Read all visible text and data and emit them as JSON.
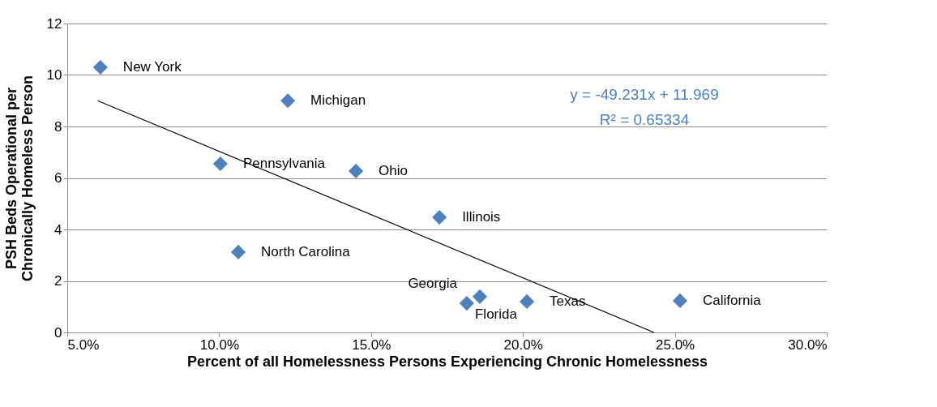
{
  "chart_data": {
    "type": "scatter",
    "xlabel": "Percent of all Homelessness Persons Experiencing Chronic Homelessness",
    "ylabel": "PSH Beds Operational per Chronically Homeless Person",
    "series": [
      {
        "color": "#4f81bd",
        "marker": "diamond",
        "x": [
          0.0609,
          0.1226,
          0.1004,
          0.145,
          0.1725,
          0.1063,
          0.1815,
          0.1858,
          0.2013,
          0.2517
        ],
        "values": [
          10.3,
          9.0,
          6.55,
          6.27,
          4.47,
          3.12,
          1.13,
          1.39,
          1.2,
          1.23
        ]
      },
      {
        "type": "line",
        "color": "#000000",
        "x": [
          0.06,
          0.2431
        ],
        "values": [
          9.0,
          0
        ]
      }
    ],
    "annotations": [
      {
        "text": "New York",
        "x": 0.0609,
        "y": 10.3
      },
      {
        "text": "Michigan",
        "x": 0.1226,
        "y": 9.0
      },
      {
        "text": "Pennsylvania",
        "x": 0.1004,
        "y": 6.55
      },
      {
        "text": "Ohio",
        "x": 0.145,
        "y": 6.27
      },
      {
        "text": "Illinois",
        "x": 0.1725,
        "y": 4.47
      },
      {
        "text": "North Carolina",
        "x": 0.1063,
        "y": 3.12
      },
      {
        "text": "Georgia",
        "x": 0.1815,
        "y": 1.13
      },
      {
        "text": "Florida",
        "x": 0.1858,
        "y": 1.39
      },
      {
        "text": "Texas",
        "x": 0.2013,
        "y": 1.2
      },
      {
        "text": "California",
        "x": 0.2517,
        "y": 1.23
      },
      "y = -49.231x + 11.969",
      "R² = 0.65334"
    ],
    "xlim": [
      0.05,
      0.3
    ],
    "xticks": [
      {
        "value": 0.05,
        "label": "5.0%"
      },
      {
        "value": 0.1,
        "label": "10.0%"
      },
      {
        "value": 0.15,
        "label": "15.0%"
      },
      {
        "value": 0.2,
        "label": "20.0%"
      },
      {
        "value": 0.25,
        "label": "25.0%"
      },
      {
        "value": 0.3,
        "label": "30.0%"
      }
    ],
    "ylim": [
      0,
      12
    ],
    "yticks": [
      0,
      2,
      4,
      6,
      8,
      10,
      12
    ],
    "grid": "y",
    "legend": false
  }
}
